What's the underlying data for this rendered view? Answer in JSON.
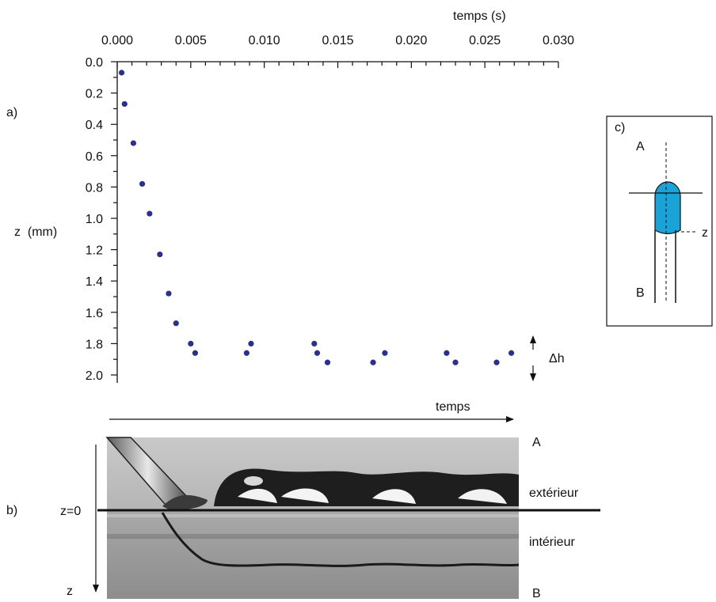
{
  "panels": {
    "a": "a)",
    "b": "b)",
    "c": "c)"
  },
  "chart_data": {
    "type": "scatter",
    "title": "",
    "xlabel": "temps (s)",
    "ylabel": "z  (mm)",
    "x_axis_position": "top",
    "y_inverted": true,
    "xlim": [
      0,
      0.03
    ],
    "ylim": [
      0,
      2.0
    ],
    "x_ticks": [
      "0.000",
      "0.005",
      "0.010",
      "0.015",
      "0.020",
      "0.025",
      "0.030"
    ],
    "y_ticks": [
      "0.0",
      "0.2",
      "0.4",
      "0.6",
      "0.8",
      "1.0",
      "1.2",
      "1.4",
      "1.6",
      "1.8",
      "2.0"
    ],
    "x": [
      0.0003,
      0.0005,
      0.0011,
      0.0017,
      0.0022,
      0.0029,
      0.0035,
      0.004,
      0.005,
      0.0053,
      0.0088,
      0.0091,
      0.0134,
      0.0136,
      0.0143,
      0.0174,
      0.0182,
      0.0224,
      0.023,
      0.0258,
      0.0268
    ],
    "y": [
      0.07,
      0.27,
      0.52,
      0.78,
      0.97,
      1.23,
      1.48,
      1.67,
      1.8,
      1.86,
      1.86,
      1.8,
      1.8,
      1.86,
      1.92,
      1.92,
      1.86,
      1.86,
      1.92,
      1.92,
      1.86
    ],
    "marker_color": "#2b2f8f",
    "grid": false,
    "annotation": "Δh"
  },
  "photo": {
    "arrow_label": "temps",
    "z0_label": "z=0",
    "z_label": "z",
    "top_label": "A",
    "outside_label": "extérieur",
    "inside_label": "intérieur",
    "bottom_label": "B"
  },
  "schematic": {
    "top_label": "A",
    "bottom_label": "B",
    "z_label": "z",
    "drop_color": "#1aa3d6"
  }
}
